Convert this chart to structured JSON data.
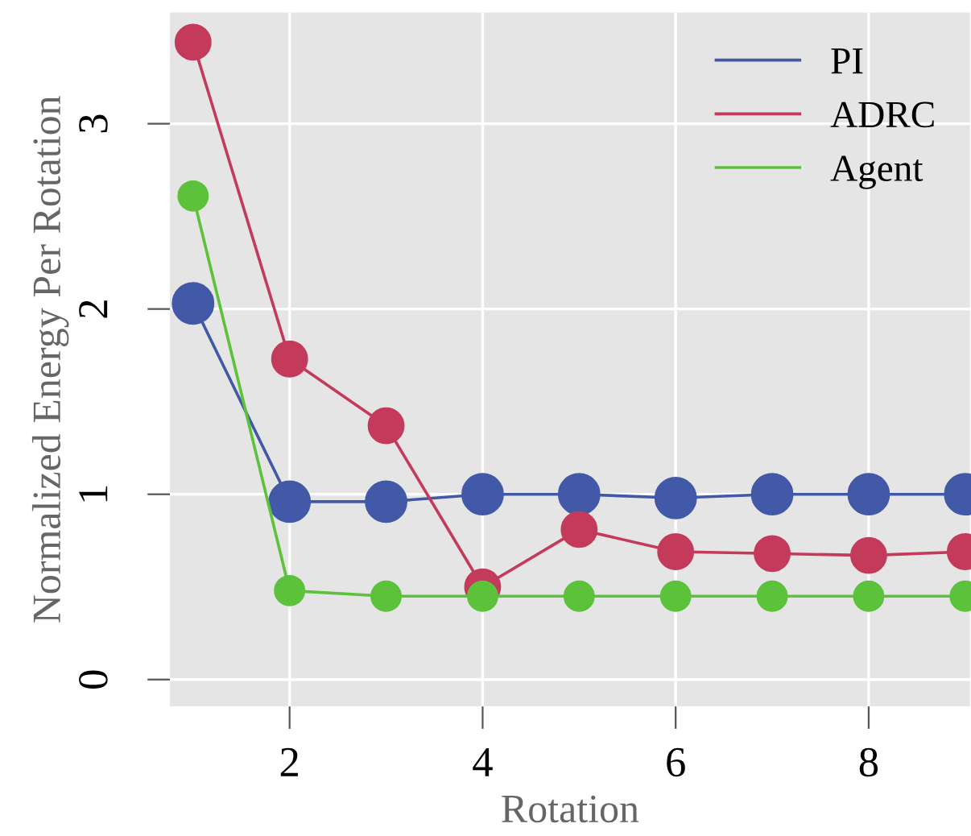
{
  "chart_data": {
    "type": "line",
    "xlabel": "Rotation",
    "ylabel": "Normalized Energy Per Rotation",
    "x": [
      1,
      2,
      3,
      4,
      5,
      6,
      7,
      8,
      9
    ],
    "series": [
      {
        "name": "PI",
        "color": "#4159a6",
        "values": [
          2.03,
          0.96,
          0.96,
          1.0,
          1.0,
          0.98,
          1.0,
          1.0,
          1.0
        ]
      },
      {
        "name": "ADRC",
        "color": "#c43a5a",
        "values": [
          3.44,
          1.73,
          1.37,
          0.5,
          0.81,
          0.69,
          0.68,
          0.67,
          0.69
        ]
      },
      {
        "name": "Agent",
        "color": "#5cc23b",
        "values": [
          2.61,
          0.48,
          0.45,
          0.45,
          0.45,
          0.45,
          0.45,
          0.45,
          0.45
        ]
      }
    ],
    "xlim": [
      0.76,
      9.05
    ],
    "ylim": [
      -0.145,
      3.6
    ],
    "xticks": [
      2,
      4,
      6,
      8
    ],
    "yticks": [
      0,
      1,
      2,
      3
    ],
    "grid": true,
    "legend": "top right",
    "marker": "circle",
    "line_style": "solid"
  }
}
